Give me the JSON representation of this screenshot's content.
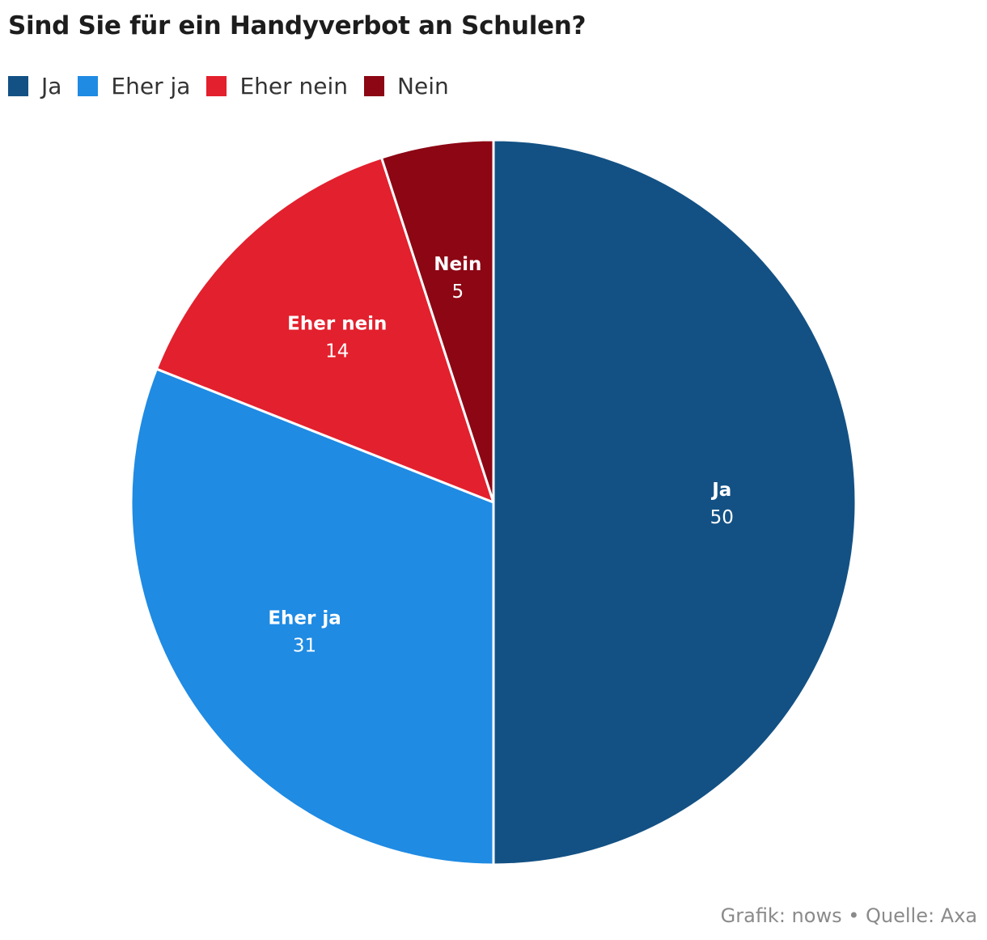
{
  "chart_data": {
    "type": "pie",
    "title": "Sind Sie für ein Handyverbot an Schulen?",
    "legend_position": "top-left",
    "slices": [
      {
        "name": "Ja",
        "value": 50,
        "color": "#135184"
      },
      {
        "name": "Eher ja",
        "value": 31,
        "color": "#1f8be3"
      },
      {
        "name": "Eher nein",
        "value": 14,
        "color": "#e3202d"
      },
      {
        "name": "Nein",
        "value": 5,
        "color": "#8c0614"
      }
    ],
    "start": "12 o'clock",
    "direction": "clockwise"
  },
  "footer": {
    "credit": "Grafik: nows • Quelle: Axa"
  }
}
